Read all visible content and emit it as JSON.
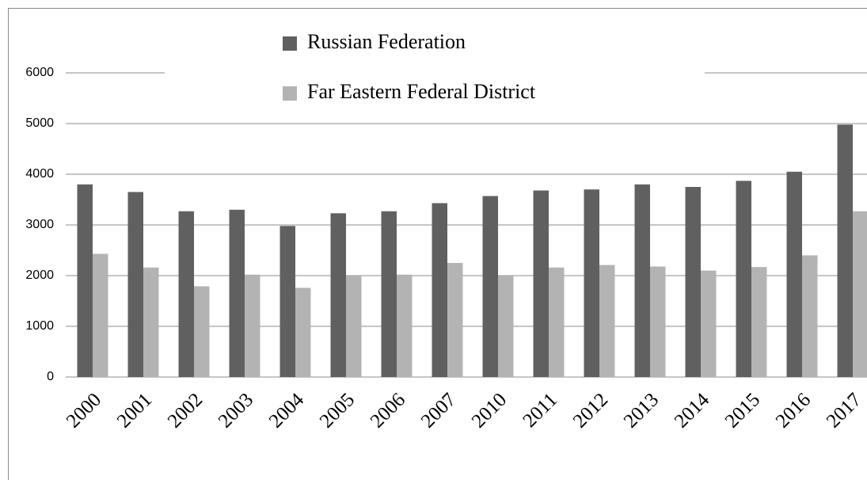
{
  "chart_data": {
    "type": "bar",
    "categories": [
      "2000",
      "2001",
      "2002",
      "2003",
      "2004",
      "2005",
      "2006",
      "2007",
      "2010",
      "2011",
      "2012",
      "2013",
      "2014",
      "2015",
      "2016",
      "2017"
    ],
    "series": [
      {
        "name": "Russian Federation",
        "color": "#606060",
        "values": [
          3800,
          3650,
          3270,
          3300,
          2980,
          3230,
          3270,
          3430,
          3570,
          3680,
          3700,
          3800,
          3750,
          3870,
          4050,
          4980
        ]
      },
      {
        "name": "Far Eastern Federal District",
        "color": "#b3b3b3",
        "values": [
          2430,
          2160,
          1790,
          2020,
          1760,
          2000,
          2020,
          2250,
          2000,
          2160,
          2210,
          2180,
          2100,
          2170,
          2400,
          3270
        ]
      }
    ],
    "ylim": [
      0,
      6000
    ],
    "yticks": [
      0,
      1000,
      2000,
      3000,
      4000,
      5000,
      6000
    ],
    "grid": true
  }
}
